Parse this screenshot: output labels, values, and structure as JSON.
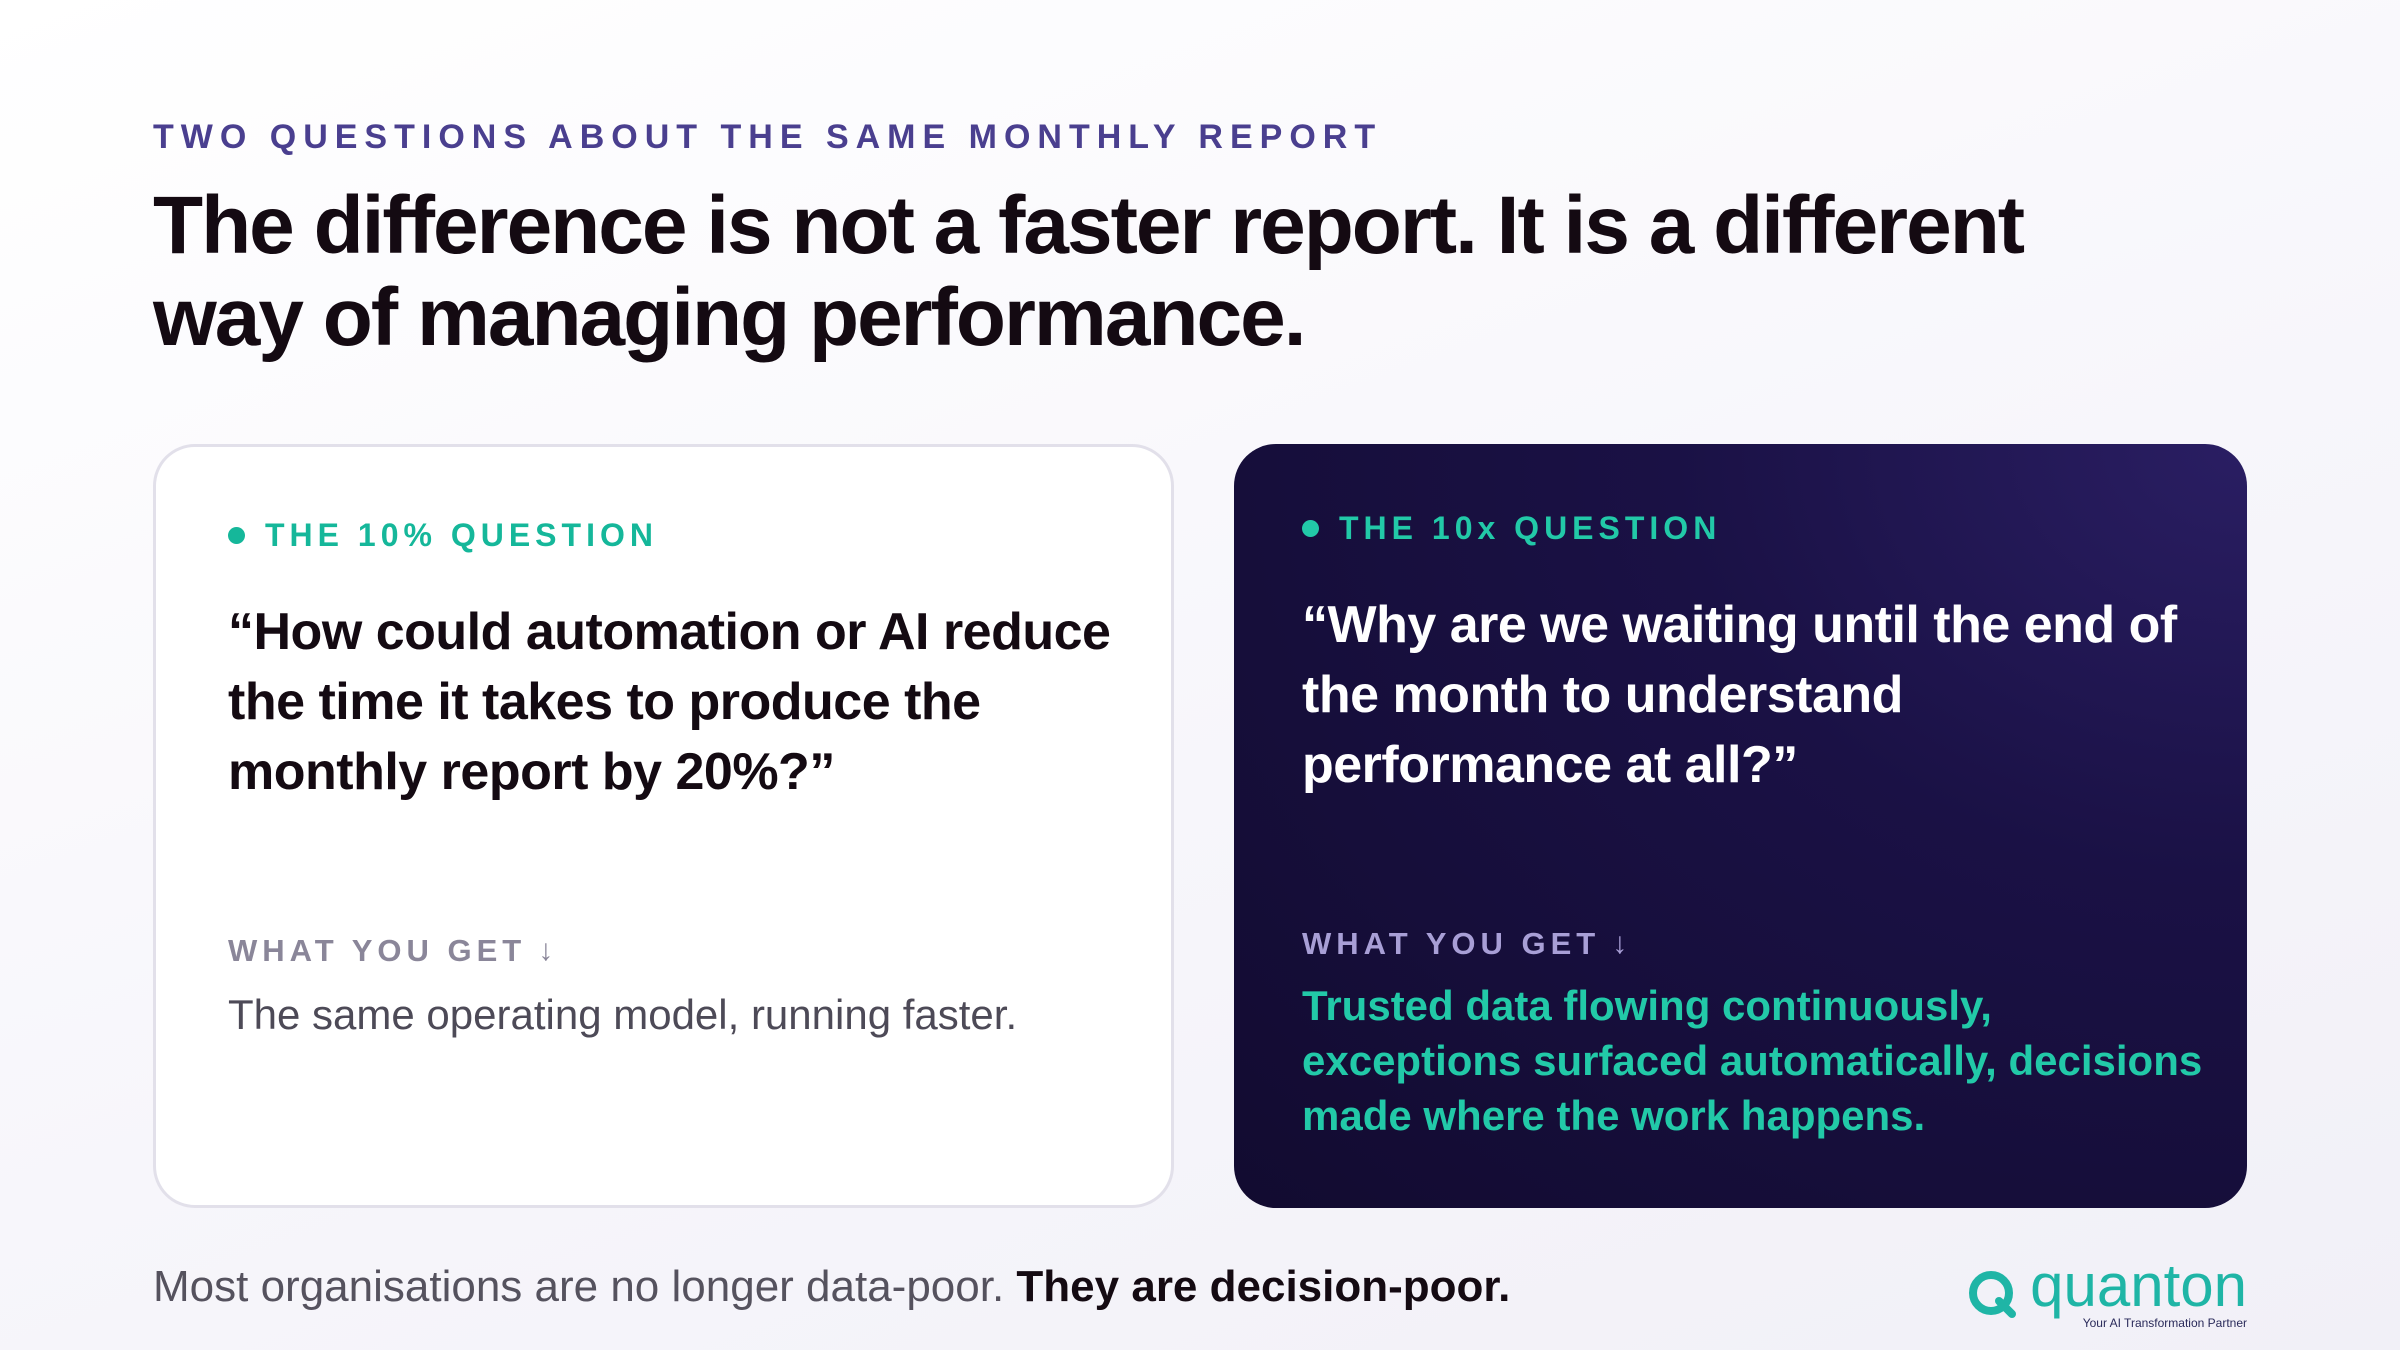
{
  "eyebrow": "TWO QUESTIONS ABOUT THE SAME MONTHLY REPORT",
  "headline": "The difference is not a faster report. It is a different way of managing performance.",
  "left_card": {
    "tag": "THE 10% QUESTION",
    "quote": "“How could automation or AI reduce the time it takes to produce the monthly report by 20%?”",
    "get_label": "WHAT YOU GET",
    "get_text": "The same operating model, running faster."
  },
  "right_card": {
    "tag": "THE 10x QUESTION",
    "quote": "“Why are we waiting until the end of the month to understand performance at all?”",
    "get_label": "WHAT YOU GET",
    "get_text": "Trusted data flowing continuously, exceptions surfaced automatically, decisions made where the work happens."
  },
  "footer": {
    "lead": "Most organisations are no longer data-poor.",
    "emphasis": "They are decision-poor."
  },
  "logo": {
    "word": "quanton",
    "tagline": "Your AI Transformation Partner"
  },
  "icons": {
    "arrow": "↓",
    "tag_bullet": "dot-icon",
    "logo_mark": "q-ring-logo-icon"
  },
  "colors": {
    "accent_teal": "#15b79a",
    "eyebrow_purple": "#4a3f8f",
    "dark_card": "#1a1145"
  }
}
